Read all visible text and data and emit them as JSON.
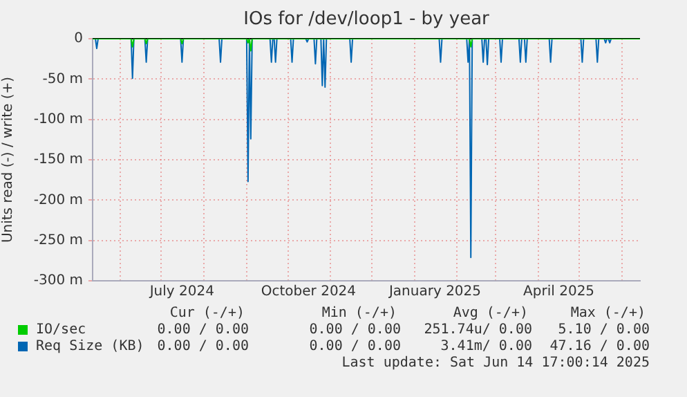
{
  "chart_data": {
    "type": "line",
    "title": "IOs for /dev/loop1 - by year",
    "ylabel": "Units read (-) / write (+)",
    "xlim": [
      "2024-05-12",
      "2025-06-14"
    ],
    "xticks": [
      {
        "value": "2024-06-01",
        "label": null
      },
      {
        "value": "2024-07-01",
        "label": null
      },
      {
        "value": "2024-07-16",
        "label": "July 2024"
      },
      {
        "value": "2024-08-01",
        "label": null
      },
      {
        "value": "2024-09-01",
        "label": null
      },
      {
        "value": "2024-10-01",
        "label": null
      },
      {
        "value": "2024-10-16",
        "label": "October 2024"
      },
      {
        "value": "2024-11-01",
        "label": null
      },
      {
        "value": "2024-12-01",
        "label": null
      },
      {
        "value": "2025-01-01",
        "label": null
      },
      {
        "value": "2025-01-16",
        "label": "January 2025"
      },
      {
        "value": "2025-02-01",
        "label": null
      },
      {
        "value": "2025-03-01",
        "label": null
      },
      {
        "value": "2025-04-01",
        "label": null
      },
      {
        "value": "2025-04-16",
        "label": "April 2025"
      },
      {
        "value": "2025-05-01",
        "label": null
      },
      {
        "value": "2025-06-01",
        "label": null
      }
    ],
    "ylim": [
      -300,
      0
    ],
    "yticks": [
      {
        "value": 0,
        "label": "0"
      },
      {
        "value": -50,
        "label": "-50 m"
      },
      {
        "value": -100,
        "label": "-100 m"
      },
      {
        "value": -150,
        "label": "-150 m"
      },
      {
        "value": -200,
        "label": "-200 m"
      },
      {
        "value": -250,
        "label": "-250 m"
      },
      {
        "value": -300,
        "label": "-300 m"
      }
    ],
    "grid": true,
    "legend": "bottom",
    "marker": "none",
    "series": [
      {
        "name": "IO/sec",
        "color": "#00cc00",
        "x": [
          "2024-05-12",
          "2024-06-09",
          "2024-06-10",
          "2024-06-11",
          "2024-06-19",
          "2024-06-20",
          "2024-06-21",
          "2024-07-15",
          "2024-07-16",
          "2024-07-17",
          "2024-09-01",
          "2024-09-02",
          "2024-09-03",
          "2024-09-04",
          "2024-09-05",
          "2025-02-10",
          "2025-02-11",
          "2025-02-12",
          "2025-06-14"
        ],
        "values": [
          0,
          0,
          -10,
          0,
          0,
          -6,
          0,
          0,
          -6,
          0,
          0,
          -5,
          0,
          -15,
          0,
          0,
          -10,
          0,
          0
        ]
      },
      {
        "name": "Req Size (KB)",
        "color": "#0066b3",
        "x": [
          "2024-05-12",
          "2024-05-14",
          "2024-05-15",
          "2024-05-16",
          "2024-06-09",
          "2024-06-10",
          "2024-06-11",
          "2024-06-19",
          "2024-06-20",
          "2024-06-21",
          "2024-07-15",
          "2024-07-16",
          "2024-07-17",
          "2024-08-12",
          "2024-08-13",
          "2024-08-14",
          "2024-09-01",
          "2024-09-02",
          "2024-09-03",
          "2024-09-04",
          "2024-09-05",
          "2024-09-18",
          "2024-09-19",
          "2024-09-20",
          "2024-09-21",
          "2024-09-22",
          "2024-09-23",
          "2024-10-03",
          "2024-10-04",
          "2024-10-05",
          "2024-10-14",
          "2024-10-15",
          "2024-10-16",
          "2024-10-20",
          "2024-10-21",
          "2024-10-22",
          "2024-10-25",
          "2024-10-26",
          "2024-10-27",
          "2024-10-28",
          "2024-10-29",
          "2024-11-15",
          "2024-11-16",
          "2024-11-17",
          "2025-01-19",
          "2025-01-20",
          "2025-01-21",
          "2025-02-08",
          "2025-02-09",
          "2025-02-10",
          "2025-02-11",
          "2025-02-12",
          "2025-02-19",
          "2025-02-20",
          "2025-02-21",
          "2025-02-22",
          "2025-02-23",
          "2025-02-24",
          "2025-03-04",
          "2025-03-05",
          "2025-03-06",
          "2025-03-18",
          "2025-03-19",
          "2025-03-20",
          "2025-03-22",
          "2025-03-23",
          "2025-03-24",
          "2025-04-09",
          "2025-04-10",
          "2025-04-11",
          "2025-05-02",
          "2025-05-03",
          "2025-05-04",
          "2025-05-13",
          "2025-05-14",
          "2025-05-15",
          "2025-05-19",
          "2025-05-20",
          "2025-05-21",
          "2025-05-22",
          "2025-05-23",
          "2025-05-24",
          "2025-06-14"
        ],
        "values": [
          0,
          0,
          -12,
          0,
          0,
          -49,
          0,
          0,
          -29,
          0,
          0,
          -29,
          0,
          0,
          -29,
          0,
          0,
          -177,
          0,
          -124,
          0,
          0,
          -29,
          0,
          0,
          -29,
          0,
          0,
          -29,
          0,
          0,
          -4,
          0,
          0,
          -31,
          0,
          0,
          -58,
          0,
          -60,
          0,
          0,
          -29,
          0,
          0,
          -29,
          0,
          0,
          -29,
          0,
          -271,
          0,
          0,
          -29,
          0,
          0,
          -32,
          0,
          0,
          -29,
          0,
          0,
          -29,
          0,
          0,
          -29,
          0,
          0,
          -29,
          0,
          0,
          -29,
          0,
          0,
          -29,
          0,
          0,
          -5,
          0,
          0,
          -5,
          0,
          0
        ]
      }
    ],
    "annotations": [
      "Cur (-/+)",
      "Min (-/+)",
      "Avg (-/+)",
      "Max (-/+)",
      "0.00 / 0.00",
      "0.00 / 0.00",
      "251.74u/ 0.00",
      "5.10 / 0.00",
      "0.00 / 0.00",
      "0.00 / 0.00",
      "3.41m/ 0.00",
      "47.16 / 0.00",
      "Last update: Sat Jun 14 17:00:14 2025"
    ]
  }
}
